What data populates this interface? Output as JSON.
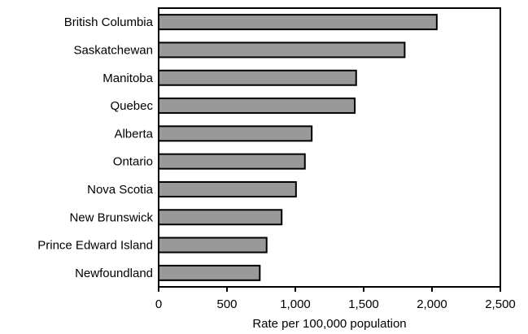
{
  "chart_data": {
    "type": "bar",
    "orientation": "horizontal",
    "title": "",
    "xlabel": "Rate per 100,000 population",
    "ylabel": "",
    "categories": [
      "British Columbia",
      "Saskatchewan",
      "Manitoba",
      "Quebec",
      "Alberta",
      "Ontario",
      "Nova Scotia",
      "New Brunswick",
      "Prince Edward Island",
      "Newfoundland"
    ],
    "values": [
      2035,
      1800,
      1445,
      1435,
      1120,
      1070,
      1005,
      900,
      790,
      740
    ],
    "xlim": [
      0,
      2500
    ],
    "xticks": [
      0,
      500,
      1000,
      1500,
      2000,
      2500
    ],
    "xtick_labels": [
      "0",
      "500",
      "1,000",
      "1,500",
      "2,000",
      "2,500"
    ],
    "grid": false,
    "legend": "none",
    "colors": {
      "bar_fill": "#999999",
      "bar_stroke": "#000000",
      "frame": "#000000"
    }
  }
}
